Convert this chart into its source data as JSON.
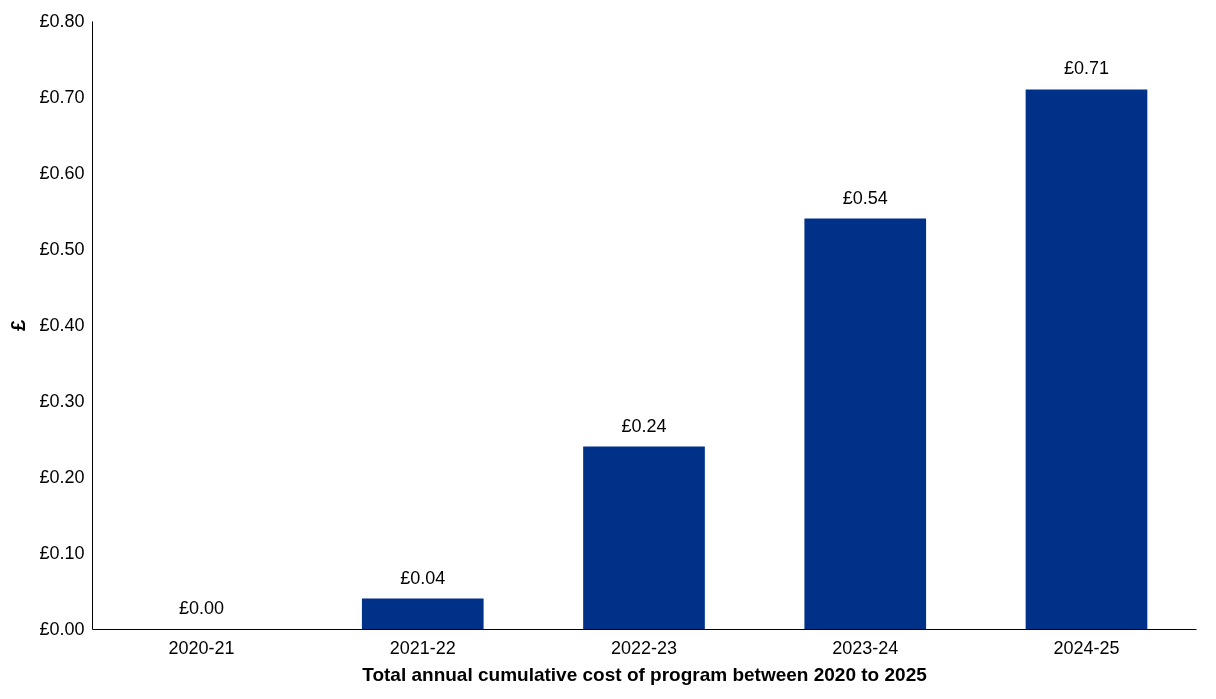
{
  "chart_data": {
    "type": "bar",
    "xlabel": "Total annual cumulative cost of program between 2020 to 2025",
    "ylabel": "£",
    "categories": [
      "2020-21",
      "2021-22",
      "2022-23",
      "2023-24",
      "2024-25"
    ],
    "values": [
      0,
      0.04,
      0.24,
      0.54,
      0.71
    ],
    "value_labels": [
      "£0.00",
      "£0.04",
      "£0.24",
      "£0.54",
      "£0.71"
    ],
    "color": "#003189",
    "ylim": [
      0,
      0.8
    ],
    "yticks": [
      {
        "value": 0,
        "label": "£0.00"
      },
      {
        "value": 0.1,
        "label": "£0.10"
      },
      {
        "value": 0.2,
        "label": "£0.20"
      },
      {
        "value": 0.3,
        "label": "£0.30"
      },
      {
        "value": 0.4,
        "label": "£0.40"
      },
      {
        "value": 0.5,
        "label": "£0.50"
      },
      {
        "value": 0.6,
        "label": "£0.60"
      },
      {
        "value": 0.7,
        "label": "£0.70"
      },
      {
        "value": 0.8,
        "label": "£0.80"
      }
    ],
    "grid": false
  }
}
